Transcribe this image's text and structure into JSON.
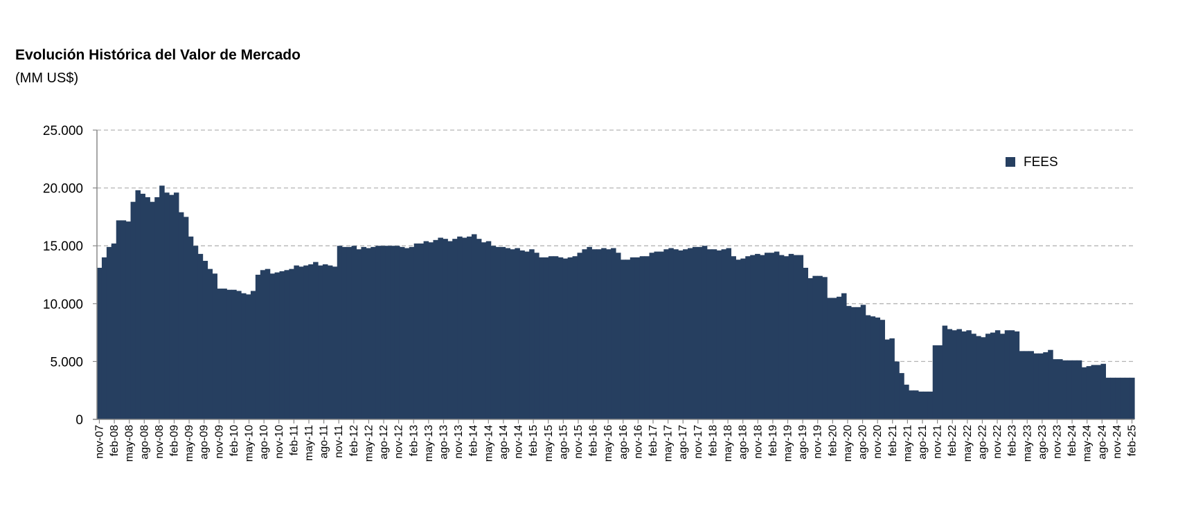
{
  "chart_data": {
    "type": "area",
    "title": "Evolución Histórica del Valor de Mercado",
    "subtitle": "(MM US$)",
    "ylim": [
      0,
      25000
    ],
    "yticks": [
      0,
      5000,
      10000,
      15000,
      20000,
      25000
    ],
    "ytick_labels": [
      "0",
      "5.000",
      "10.000",
      "15.000",
      "20.000",
      "25.000"
    ],
    "grid": true,
    "legend_position": "top-right",
    "xtick_labels": [
      "nov-07",
      "feb-08",
      "may-08",
      "ago-08",
      "nov-08",
      "feb-09",
      "may-09",
      "ago-09",
      "nov-09",
      "feb-10",
      "may-10",
      "ago-10",
      "nov-10",
      "feb-11",
      "may-11",
      "ago-11",
      "nov-11",
      "feb-12",
      "may-12",
      "ago-12",
      "nov-12",
      "feb-13",
      "may-13",
      "ago-13",
      "nov-13",
      "feb-14",
      "may-14",
      "ago-14",
      "nov-14",
      "feb-15",
      "may-15",
      "ago-15",
      "nov-15",
      "feb-16",
      "may-16",
      "ago-16",
      "nov-16",
      "feb-17",
      "may-17",
      "ago-17",
      "nov-17",
      "feb-18",
      "may-18",
      "ago-18",
      "nov-18",
      "feb-19",
      "may-19",
      "ago-19",
      "nov-19",
      "feb-20",
      "may-20",
      "ago-20",
      "nov-20",
      "feb-21",
      "may-21",
      "ago-21",
      "nov-21",
      "feb-22",
      "may-22",
      "ago-22",
      "nov-22",
      "feb-23",
      "may-23",
      "ago-23",
      "nov-23",
      "feb-24",
      "may-24",
      "ago-24",
      "nov-24",
      "feb-25"
    ],
    "series": [
      {
        "name": "FEES",
        "color": "#263f60",
        "values": [
          13100,
          14000,
          14900,
          15200,
          17200,
          17200,
          17100,
          18800,
          19800,
          19500,
          19200,
          18800,
          19200,
          20200,
          19600,
          19400,
          19600,
          17900,
          17500,
          15800,
          15000,
          14300,
          13700,
          13000,
          12600,
          11300,
          11300,
          11200,
          11200,
          11100,
          10900,
          10800,
          11100,
          12500,
          12900,
          13000,
          12600,
          12700,
          12800,
          12900,
          13000,
          13300,
          13200,
          13300,
          13400,
          13600,
          13300,
          13400,
          13300,
          13200,
          15000,
          14900,
          14900,
          15000,
          14700,
          14900,
          14800,
          14900,
          15000,
          15000,
          15000,
          15000,
          15000,
          14900,
          14800,
          14900,
          15200,
          15200,
          15400,
          15300,
          15500,
          15700,
          15600,
          15400,
          15600,
          15800,
          15700,
          15800,
          16000,
          15600,
          15300,
          15400,
          15000,
          14900,
          14900,
          14800,
          14700,
          14800,
          14600,
          14500,
          14700,
          14400,
          14000,
          14000,
          14100,
          14100,
          14000,
          13900,
          14000,
          14100,
          14400,
          14700,
          14900,
          14700,
          14700,
          14800,
          14700,
          14800,
          14400,
          13800,
          13800,
          14000,
          14000,
          14100,
          14100,
          14400,
          14500,
          14500,
          14700,
          14800,
          14700,
          14600,
          14700,
          14800,
          14900,
          14900,
          15000,
          14700,
          14700,
          14600,
          14700,
          14800,
          14100,
          13800,
          13900,
          14100,
          14200,
          14300,
          14200,
          14400,
          14400,
          14500,
          14200,
          14100,
          14300,
          14200,
          14200,
          13100,
          12200,
          12400,
          12400,
          12300,
          10500,
          10500,
          10600,
          10900,
          9800,
          9700,
          9700,
          9900,
          9000,
          8900,
          8800,
          8600,
          6900,
          7000,
          5000,
          4000,
          3000,
          2500,
          2500,
          2400,
          2400,
          2400,
          6400,
          6400,
          8100,
          7800,
          7700,
          7800,
          7600,
          7700,
          7400,
          7200,
          7100,
          7400,
          7500,
          7700,
          7400,
          7700,
          7700,
          7600,
          5900,
          5900,
          5900,
          5700,
          5700,
          5800,
          6000,
          5200,
          5200,
          5100,
          5100,
          5100,
          5100,
          4500,
          4600,
          4700,
          4700,
          4800,
          3600,
          3600,
          3600,
          3600,
          3600,
          3600
        ]
      }
    ]
  }
}
